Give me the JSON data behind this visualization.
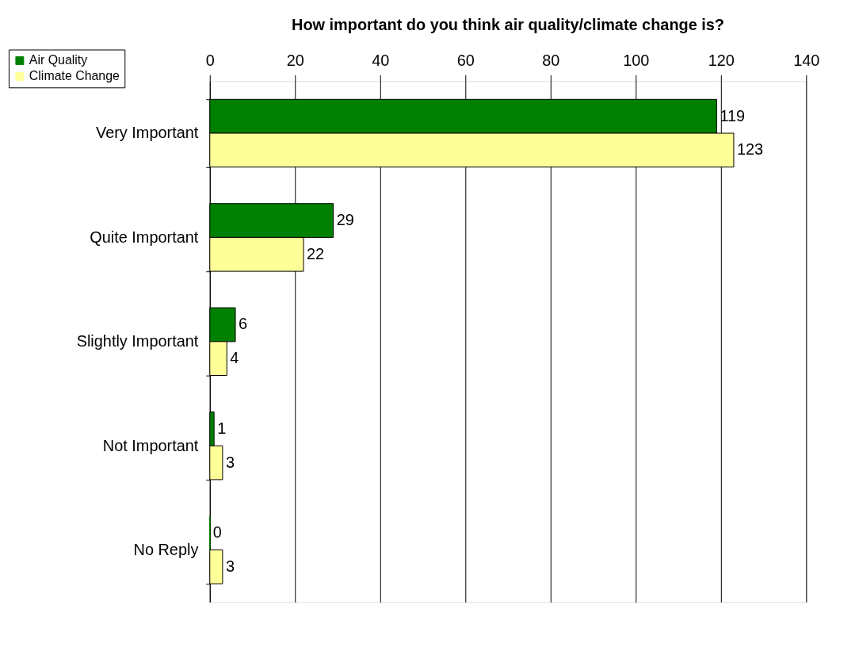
{
  "chart_data": {
    "type": "bar",
    "orientation": "horizontal",
    "title": "How important do you think air quality/climate change is?",
    "categories": [
      "Very Important",
      "Quite Important",
      "Slightly Important",
      "Not Important",
      "No Reply"
    ],
    "series": [
      {
        "name": "Air Quality",
        "color": "#008000",
        "values": [
          119,
          29,
          6,
          1,
          0
        ]
      },
      {
        "name": "Climate Change",
        "color": "#ffff99",
        "values": [
          123,
          22,
          4,
          3,
          3
        ]
      }
    ],
    "xlim": [
      0,
      140
    ],
    "xticks": [
      0,
      20,
      40,
      60,
      80,
      100,
      120,
      140
    ],
    "grid": "x",
    "legend": "top left",
    "data_labels": true
  }
}
